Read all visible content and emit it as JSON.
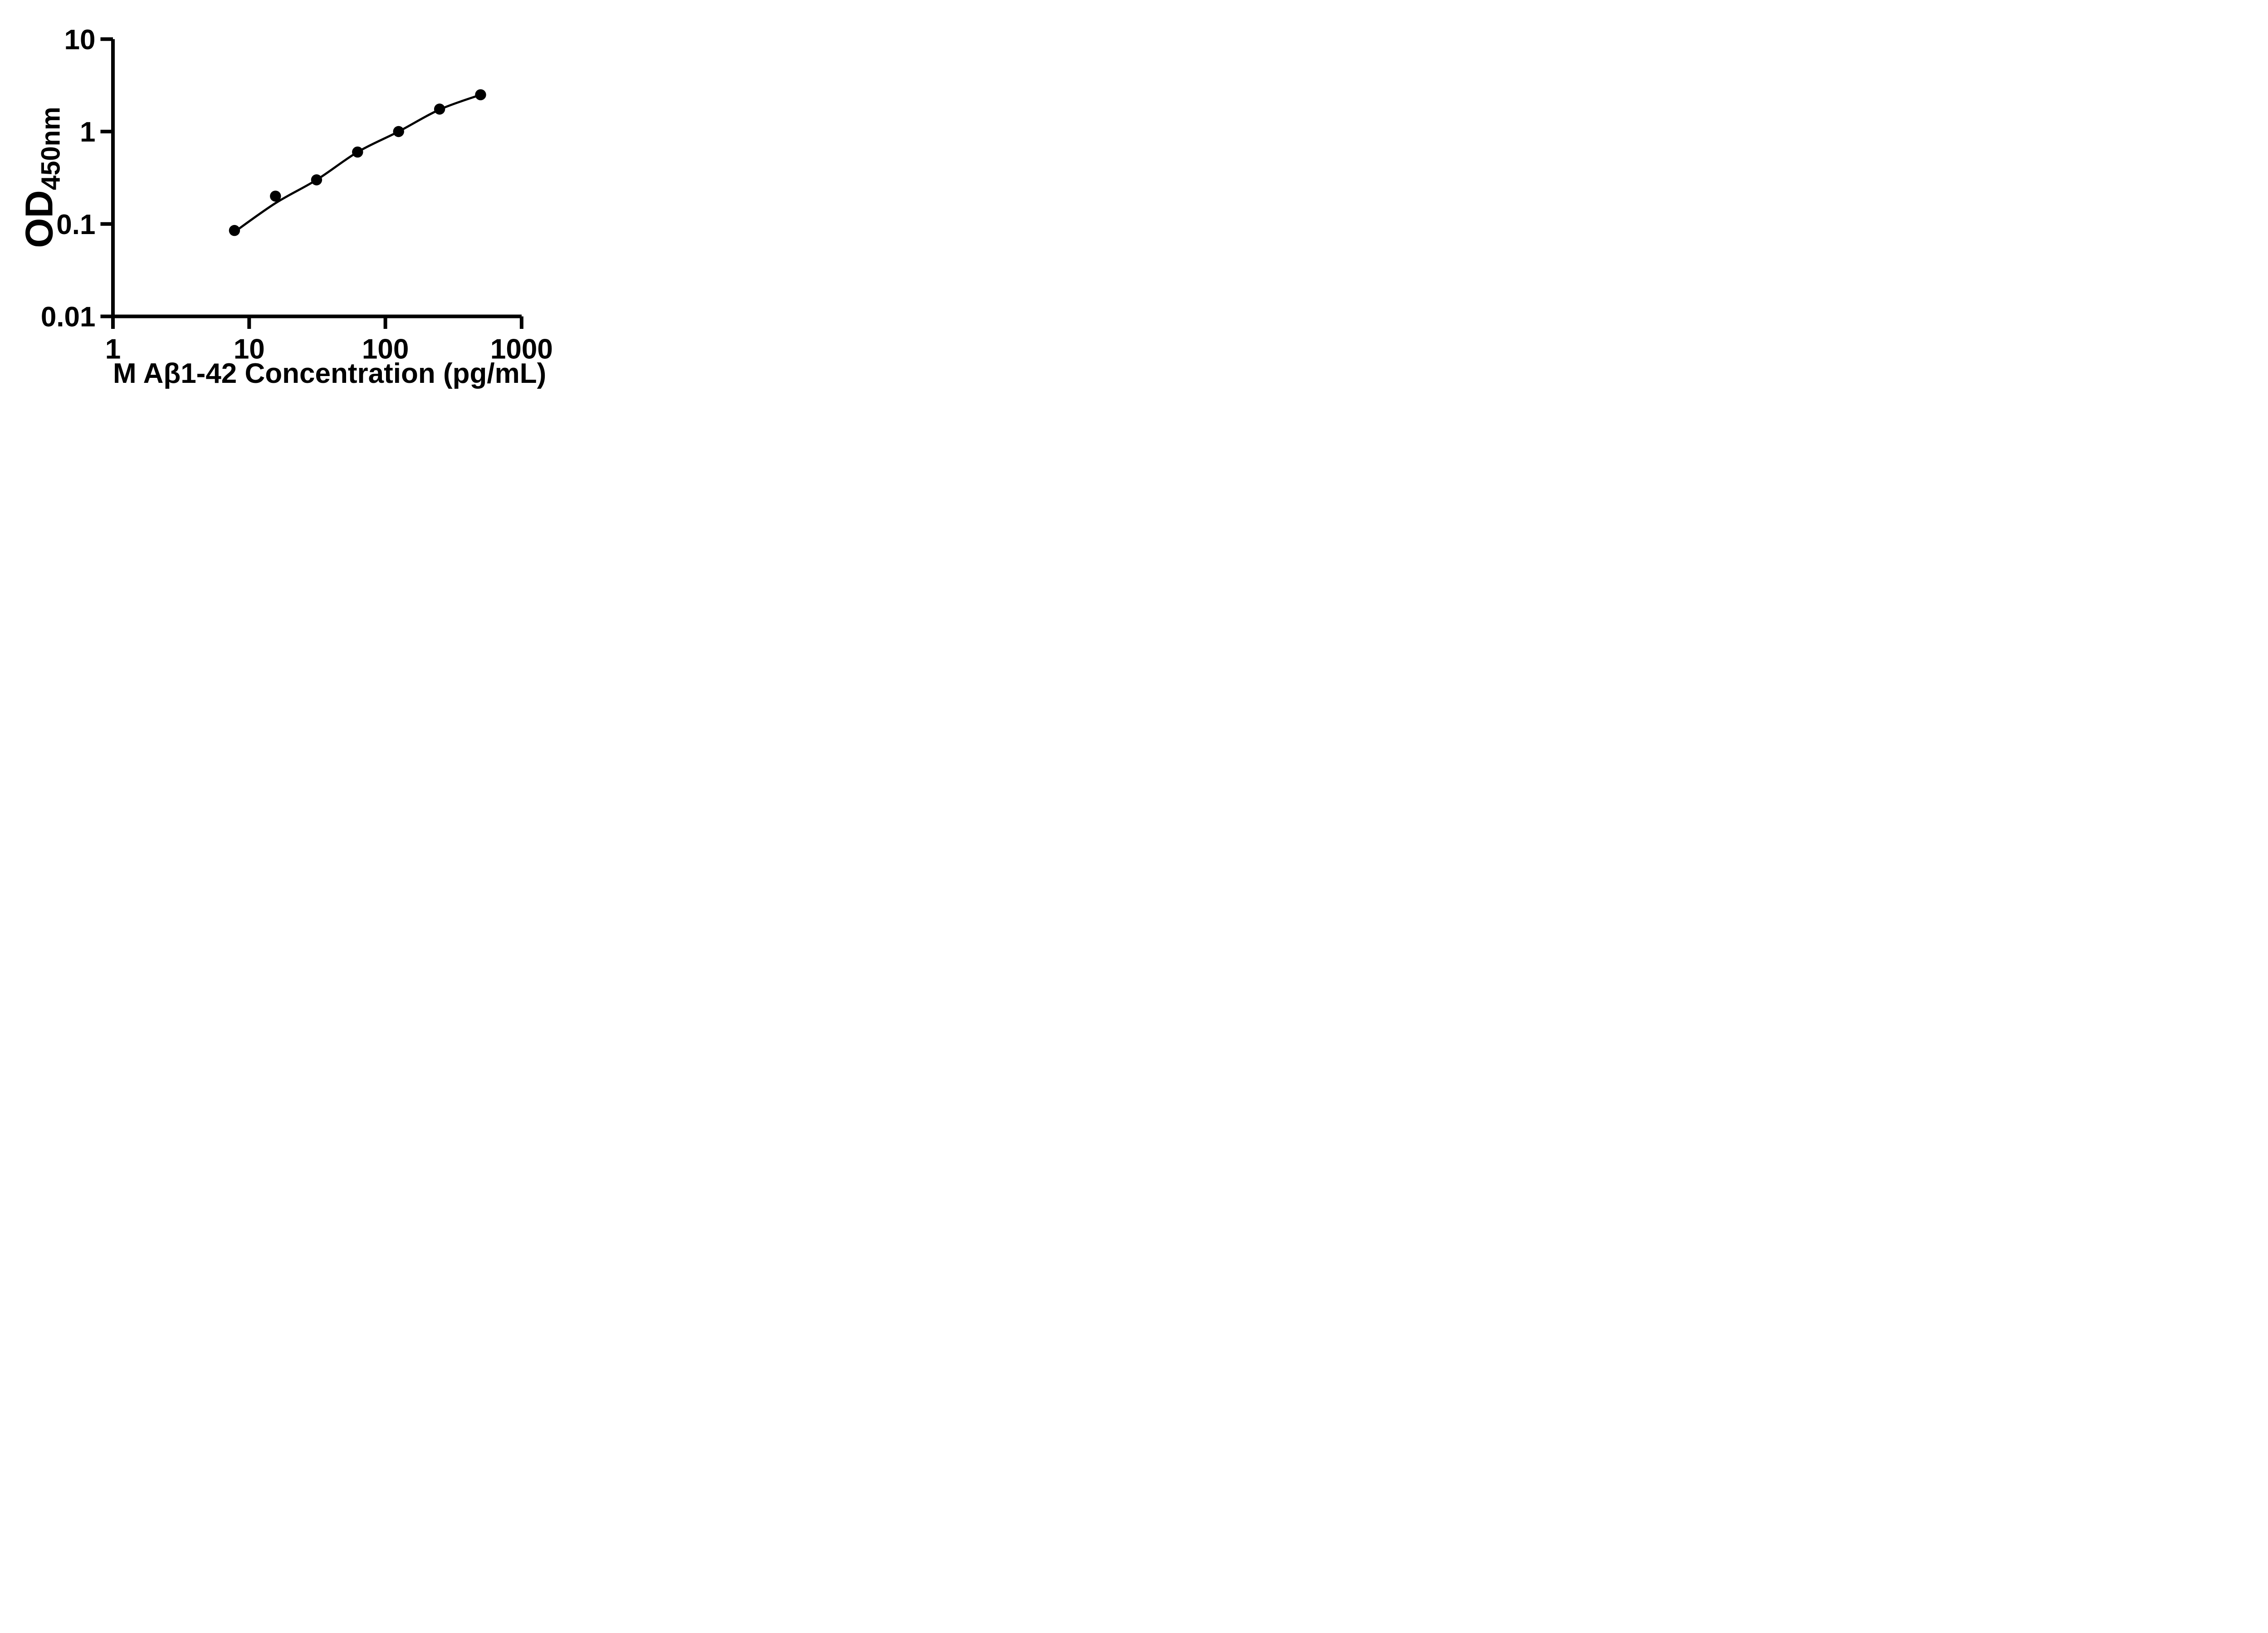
{
  "figure": {
    "background": "#ffffff",
    "ink": "#000000"
  },
  "chart_data": {
    "type": "scatter",
    "title": "",
    "xlabel": "M Aβ1-42 Concentration (pg/mL)",
    "ylabel_main": "OD",
    "ylabel_sub": "450nm",
    "x_scale": "log",
    "y_scale": "log",
    "xlim": [
      1,
      1000
    ],
    "ylim": [
      0.01,
      10
    ],
    "grid": false,
    "legend": "none",
    "x_ticks": [
      {
        "value": 1,
        "label": "1"
      },
      {
        "value": 10,
        "label": "10"
      },
      {
        "value": 100,
        "label": "100"
      },
      {
        "value": 1000,
        "label": "1000"
      }
    ],
    "y_ticks": [
      {
        "value": 10,
        "label": "10"
      },
      {
        "value": 1,
        "label": "1"
      },
      {
        "value": 0.1,
        "label": "0.1"
      },
      {
        "value": 0.01,
        "label": "0.01"
      }
    ],
    "points": [
      {
        "x": 7.8,
        "y": 0.085
      },
      {
        "x": 15.6,
        "y": 0.2
      },
      {
        "x": 31.25,
        "y": 0.3
      },
      {
        "x": 62.5,
        "y": 0.6
      },
      {
        "x": 125,
        "y": 1.0
      },
      {
        "x": 250,
        "y": 1.75
      },
      {
        "x": 500,
        "y": 2.5
      }
    ],
    "fit_curve": [
      {
        "x": 7.8,
        "y": 0.082
      },
      {
        "x": 15.6,
        "y": 0.168
      },
      {
        "x": 31.25,
        "y": 0.3
      },
      {
        "x": 62.5,
        "y": 0.6
      },
      {
        "x": 125,
        "y": 1.0
      },
      {
        "x": 250,
        "y": 1.73
      },
      {
        "x": 500,
        "y": 2.5
      }
    ],
    "marker": {
      "shape": "circle",
      "color": "#000000"
    },
    "line_color": "#000000"
  }
}
